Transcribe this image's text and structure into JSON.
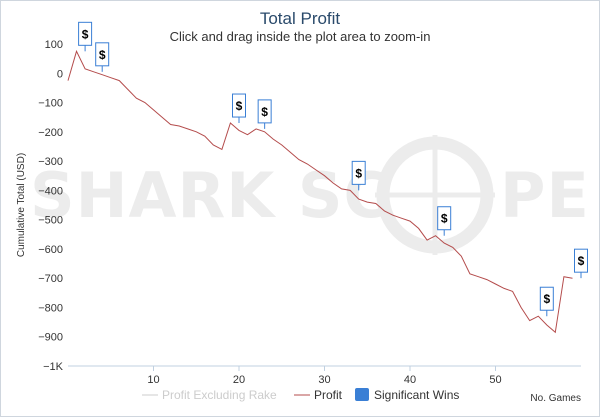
{
  "chart_data": {
    "type": "line",
    "title": "Total Profit",
    "subtitle": "Click and drag inside the plot area to zoom-in",
    "xlabel": "No. Games",
    "ylabel": "Cumulative Total (USD)",
    "xlim": [
      0,
      60
    ],
    "ylim": [
      -1000,
      100
    ],
    "x_ticks": [
      10,
      20,
      30,
      40,
      50
    ],
    "y_ticks": [
      {
        "value": 100,
        "label": "100"
      },
      {
        "value": 0,
        "label": "0"
      },
      {
        "value": -100,
        "label": "−100"
      },
      {
        "value": -200,
        "label": "−200"
      },
      {
        "value": -300,
        "label": "−300"
      },
      {
        "value": -400,
        "label": "−400"
      },
      {
        "value": -500,
        "label": "−500"
      },
      {
        "value": -600,
        "label": "−600"
      },
      {
        "value": -700,
        "label": "−700"
      },
      {
        "value": -800,
        "label": "−800"
      },
      {
        "value": -900,
        "label": "−900"
      },
      {
        "value": -1000,
        "label": "−1K"
      }
    ],
    "grid": false,
    "watermark": "SHARK SCOPE",
    "legend_position": "bottom",
    "series": [
      {
        "name": "Profit",
        "color": "#b44c4c",
        "x": [
          0,
          1,
          2,
          3,
          4,
          5,
          6,
          7,
          8,
          9,
          10,
          11,
          12,
          13,
          14,
          15,
          16,
          17,
          18,
          19,
          20,
          21,
          22,
          23,
          24,
          25,
          26,
          27,
          28,
          29,
          30,
          31,
          32,
          33,
          34,
          35,
          36,
          37,
          38,
          39,
          40,
          41,
          42,
          43,
          44,
          45,
          46,
          47,
          48,
          49,
          50,
          51,
          52,
          53,
          54,
          55,
          56,
          57,
          58,
          59
        ],
        "y": [
          -25,
          75,
          15,
          5,
          -5,
          -15,
          -25,
          -55,
          -85,
          -100,
          -125,
          -150,
          -175,
          -180,
          -190,
          -200,
          -215,
          -245,
          -260,
          -170,
          -195,
          -210,
          -190,
          -200,
          -225,
          -245,
          -270,
          -295,
          -310,
          -330,
          -350,
          -375,
          -395,
          -400,
          -430,
          -440,
          -445,
          -470,
          -485,
          -495,
          -505,
          -530,
          -570,
          -555,
          -580,
          -595,
          -625,
          -685,
          -695,
          -705,
          -720,
          -735,
          -745,
          -800,
          -845,
          -830,
          -860,
          -885,
          -695,
          -700
        ]
      },
      {
        "name": "Profit Excluding Rake",
        "color": "#cccccc",
        "x": [],
        "y": []
      }
    ],
    "significant_wins": {
      "name": "Significant Wins",
      "color": "#3a7fd5",
      "marker": "$",
      "points": [
        {
          "x": 2,
          "y": 75
        },
        {
          "x": 4,
          "y": 5
        },
        {
          "x": 20,
          "y": -170
        },
        {
          "x": 23,
          "y": -190
        },
        {
          "x": 34,
          "y": -400
        },
        {
          "x": 44,
          "y": -555
        },
        {
          "x": 56,
          "y": -830
        },
        {
          "x": 60,
          "y": -700
        }
      ]
    }
  }
}
